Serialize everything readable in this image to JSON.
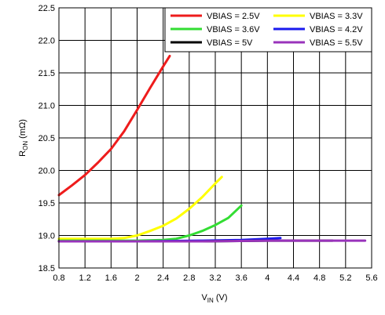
{
  "chart_data": {
    "type": "line",
    "xlabel": "V",
    "xlabel_sub": "IN",
    "xlabel_unit": " (V)",
    "ylabel": "R",
    "ylabel_sub": "ON",
    "ylabel_unit": " (mΩ)",
    "xlim": [
      0.8,
      5.6
    ],
    "ylim": [
      18.5,
      22.5
    ],
    "xticks": [
      0.8,
      1.2,
      1.6,
      2,
      2.4,
      2.8,
      3.2,
      3.6,
      4,
      4.4,
      4.8,
      5.2,
      5.6
    ],
    "xtick_labels": [
      "0.8",
      "1.2",
      "1.6",
      "2",
      "2.4",
      "2.8",
      "3.2",
      "3.6",
      "4",
      "4.4",
      "4.8",
      "5.2",
      "5.6"
    ],
    "yticks": [
      18.5,
      19.0,
      19.5,
      20.0,
      20.5,
      21.0,
      21.5,
      22.0,
      22.5
    ],
    "ytick_labels": [
      "18.5",
      "19.0",
      "19.5",
      "20.0",
      "20.5",
      "21.0",
      "21.5",
      "22.0",
      "22.5"
    ],
    "grid": true,
    "legend_position": "top-right",
    "series": [
      {
        "name": "VBIAS = 2.5V",
        "color": "#ee1c1c",
        "x": [
          0.8,
          1.0,
          1.2,
          1.4,
          1.6,
          1.8,
          2.0,
          2.2,
          2.4,
          2.5
        ],
        "y": [
          19.62,
          19.77,
          19.93,
          20.12,
          20.33,
          20.6,
          20.93,
          21.27,
          21.6,
          21.76
        ]
      },
      {
        "name": "VBIAS = 3.3V",
        "color": "#ffff00",
        "x": [
          0.8,
          1.2,
          1.6,
          1.8,
          2.0,
          2.2,
          2.4,
          2.6,
          2.8,
          3.0,
          3.2,
          3.3
        ],
        "y": [
          18.95,
          18.95,
          18.95,
          18.96,
          19.0,
          19.07,
          19.15,
          19.26,
          19.41,
          19.59,
          19.8,
          19.9
        ]
      },
      {
        "name": "VBIAS = 3.6V",
        "color": "#33dd33",
        "x": [
          0.8,
          1.6,
          2.0,
          2.4,
          2.6,
          2.8,
          3.0,
          3.2,
          3.4,
          3.6
        ],
        "y": [
          18.92,
          18.92,
          18.92,
          18.93,
          18.95,
          19.0,
          19.07,
          19.16,
          19.27,
          19.46
        ]
      },
      {
        "name": "VBIAS = 4.2V",
        "color": "#1a1aee",
        "x": [
          0.8,
          2.0,
          3.0,
          3.6,
          3.8,
          4.0,
          4.2
        ],
        "y": [
          18.91,
          18.91,
          18.92,
          18.93,
          18.94,
          18.95,
          18.96
        ]
      },
      {
        "name": "VBIAS = 5V",
        "color": "#000000",
        "x": [
          0.8,
          2.0,
          3.0,
          4.0,
          4.6,
          5.0
        ],
        "y": [
          18.91,
          18.91,
          18.91,
          18.92,
          18.92,
          18.92
        ]
      },
      {
        "name": "VBIAS = 5.5V",
        "color": "#9933bb",
        "x": [
          0.8,
          2.0,
          3.0,
          4.0,
          5.0,
          5.5
        ],
        "y": [
          18.91,
          18.91,
          18.91,
          18.92,
          18.92,
          18.92
        ]
      }
    ]
  }
}
